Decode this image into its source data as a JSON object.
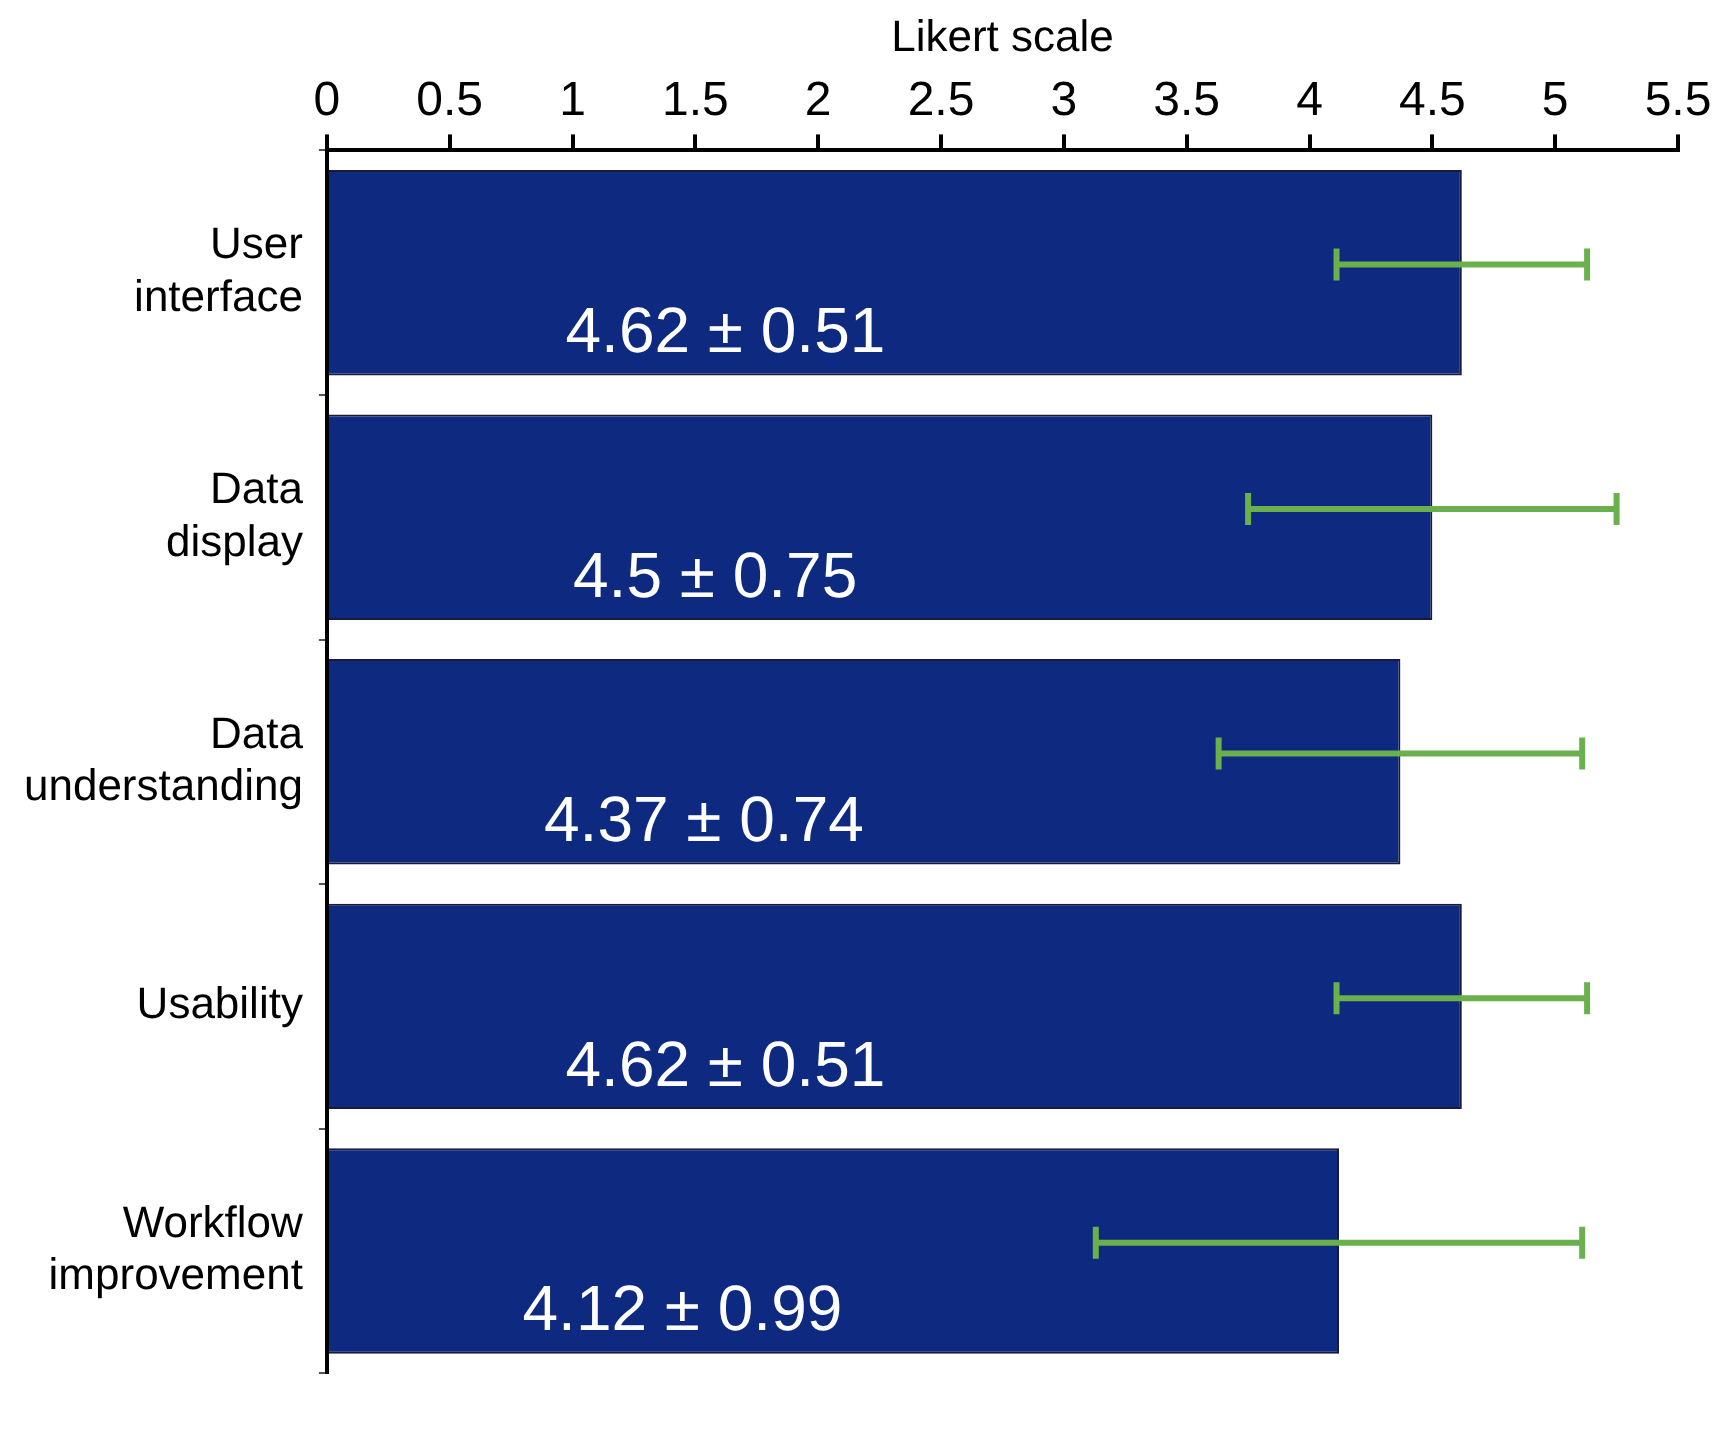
{
  "chart_data": {
    "type": "bar",
    "orientation": "horizontal",
    "xlabel": "Likert scale",
    "categories": [
      "User interface",
      "Data display",
      "Data understanding",
      "Usability",
      "Workflow improvement"
    ],
    "values": [
      4.62,
      4.5,
      4.37,
      4.62,
      4.12
    ],
    "errors": [
      0.51,
      0.75,
      0.74,
      0.51,
      0.99
    ],
    "value_labels": [
      "4.62 ± 0.51",
      "4.5 ± 0.75",
      "4.37 ± 0.74",
      "4.62 ± 0.51",
      "4.12 ± 0.99"
    ],
    "color": "#0d2a80",
    "xlim": [
      0,
      5.5
    ],
    "xticks": [
      0,
      0.5,
      1,
      1.5,
      2,
      2.5,
      3,
      3.5,
      4,
      4.5,
      5,
      5.5
    ],
    "grid": false,
    "legend": false
  }
}
